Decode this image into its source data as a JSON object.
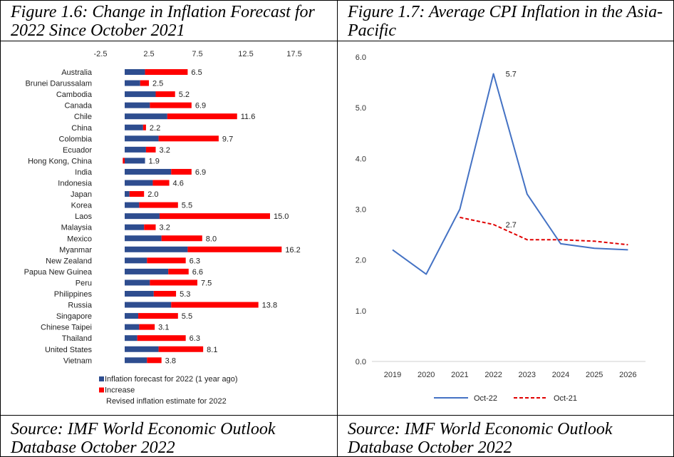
{
  "left_panel": {
    "caption": "Figure 1.6: Change in Inflation Forecast for\n2022 Since October 2021",
    "source": "Source: IMF World Economic Outlook\nDatabase October 2022"
  },
  "right_panel": {
    "caption": "Figure 1.7: Average CPI Inflation in the Asia-\nPacific",
    "source": "Source: IMF World Economic Outlook\nDatabase October 2022"
  },
  "chart_data": [
    {
      "type": "bar",
      "orientation": "horizontal",
      "stacked": true,
      "title": "",
      "x_ticks": [
        "-2.5",
        "2.5",
        "7.5",
        "12.5",
        "17.5"
      ],
      "xlim": [
        -2.5,
        17.5
      ],
      "x_axis_position": "top",
      "colors": {
        "base": "#2E4D8F",
        "increase": "#FF0000"
      },
      "categories": [
        "Australia",
        "Brunei Darussalam",
        "Cambodia",
        "Canada",
        "Chile",
        "China",
        "Colombia",
        "Ecuador",
        "Hong Kong, China",
        "India",
        "Indonesia",
        "Japan",
        "Korea",
        "Laos",
        "Malaysia",
        "Mexico",
        "Myanmar",
        "New Zealand",
        "Papua New Guinea",
        "Peru",
        "Philippines",
        "Russia",
        "Singapore",
        "Chinese Taipei",
        "Thailand",
        "United States",
        "Vietnam"
      ],
      "series": [
        {
          "name": "Inflation forecast for 2022 (1 year ago)",
          "values": [
            2.1,
            1.6,
            3.2,
            2.6,
            4.4,
            1.9,
            3.5,
            2.2,
            2.1,
            4.8,
            2.9,
            0.5,
            1.5,
            3.6,
            2.0,
            3.8,
            6.5,
            2.3,
            4.5,
            2.6,
            3.0,
            4.8,
            1.4,
            1.5,
            1.3,
            3.5,
            2.3
          ]
        },
        {
          "name": "Increase",
          "values": [
            4.4,
            0.9,
            2.0,
            4.3,
            7.2,
            0.3,
            6.2,
            1.0,
            -0.2,
            2.1,
            1.7,
            1.5,
            4.0,
            11.4,
            1.2,
            4.2,
            9.7,
            4.0,
            2.1,
            4.9,
            2.3,
            9.0,
            4.1,
            1.6,
            5.0,
            4.6,
            1.5
          ]
        }
      ],
      "data_labels": [
        "6.5",
        "2.5",
        "5.2",
        "6.9",
        "11.6",
        "2.2",
        "9.7",
        "3.2",
        "1.9",
        "6.9",
        "4.6",
        "2.0",
        "5.5",
        "15.0",
        "3.2",
        "8.0",
        "16.2",
        "6.3",
        "6.6",
        "7.5",
        "5.3",
        "13.8",
        "5.5",
        "3.1",
        "6.3",
        "8.1",
        "3.8"
      ],
      "legend": {
        "placement": "bottom",
        "items": [
          {
            "label": "Inflation forecast for 2022 (1 year ago)",
            "color": "#2E4D8F"
          },
          {
            "label": "Increase",
            "color": "#FF0000"
          },
          {
            "label": "Revised inflation estimate for 2022",
            "color": ""
          }
        ]
      },
      "grid": false
    },
    {
      "type": "line",
      "title": "",
      "x": [
        "2019",
        "2020",
        "2021",
        "2022",
        "2023",
        "2024",
        "2025",
        "2026"
      ],
      "y_ticks": [
        "0.0",
        "1.0",
        "2.0",
        "3.0",
        "4.0",
        "5.0",
        "6.0"
      ],
      "ylim": [
        0,
        6
      ],
      "series": [
        {
          "name": "Oct-22",
          "color": "#4472C4",
          "style": "solid",
          "values": [
            2.2,
            1.72,
            3.0,
            5.67,
            3.3,
            2.32,
            2.23,
            2.2
          ]
        },
        {
          "name": "Oct-21",
          "color": "#E00000",
          "style": "dashed",
          "values": [
            null,
            null,
            2.84,
            2.7,
            2.4,
            2.4,
            2.37,
            2.3
          ]
        }
      ],
      "annotations": [
        {
          "label": "5.7",
          "series": "Oct-22",
          "x": "2022"
        },
        {
          "label": "2.7",
          "series": "Oct-21",
          "x": "2022"
        }
      ],
      "legend": {
        "placement": "bottom"
      },
      "grid": false
    }
  ]
}
